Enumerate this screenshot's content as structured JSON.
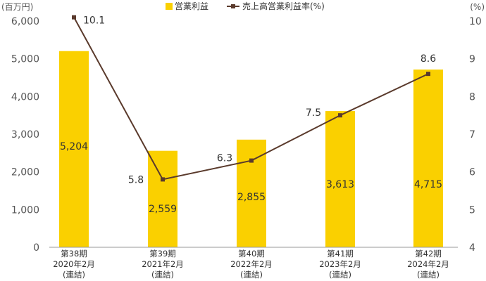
{
  "chart_data": {
    "type": "bar",
    "categories": [
      [
        "第38期",
        "2020年2月",
        "(連結)"
      ],
      [
        "第39期",
        "2021年2月",
        "(連結)"
      ],
      [
        "第40期",
        "2022年2月",
        "(連結)"
      ],
      [
        "第41期",
        "2023年2月",
        "(連結)"
      ],
      [
        "第42期",
        "2024年2月",
        "(連結)"
      ]
    ],
    "series": [
      {
        "name": "営業利益",
        "type": "bar",
        "axis": "left",
        "values": [
          5204,
          2559,
          2855,
          3613,
          4715
        ],
        "value_labels": [
          "5,204",
          "2,559",
          "2,855",
          "3,613",
          "4,715"
        ],
        "color": "#FAD000"
      },
      {
        "name": "売上高営業利益率(%)",
        "type": "line",
        "axis": "right",
        "values": [
          10.1,
          5.8,
          6.3,
          7.5,
          8.6
        ],
        "value_labels": [
          "10.1",
          "5.8",
          "6.3",
          "7.5",
          "8.6"
        ],
        "color": "#5A3A2C"
      }
    ],
    "left_axis": {
      "unit": "(百万円)",
      "ylim": [
        0,
        6000
      ],
      "ticks": [
        0,
        1000,
        2000,
        3000,
        4000,
        5000,
        6000
      ],
      "tick_labels": [
        "0",
        "1,000",
        "2,000",
        "3,000",
        "4,000",
        "5,000",
        "6,000"
      ]
    },
    "right_axis": {
      "unit": "(%)",
      "ylim": [
        4,
        10
      ],
      "ticks": [
        4,
        5,
        6,
        7,
        8,
        9,
        10
      ],
      "tick_labels": [
        "4",
        "5",
        "6",
        "7",
        "8",
        "9",
        "10"
      ]
    },
    "legend_position": "top-center",
    "grid": false
  }
}
